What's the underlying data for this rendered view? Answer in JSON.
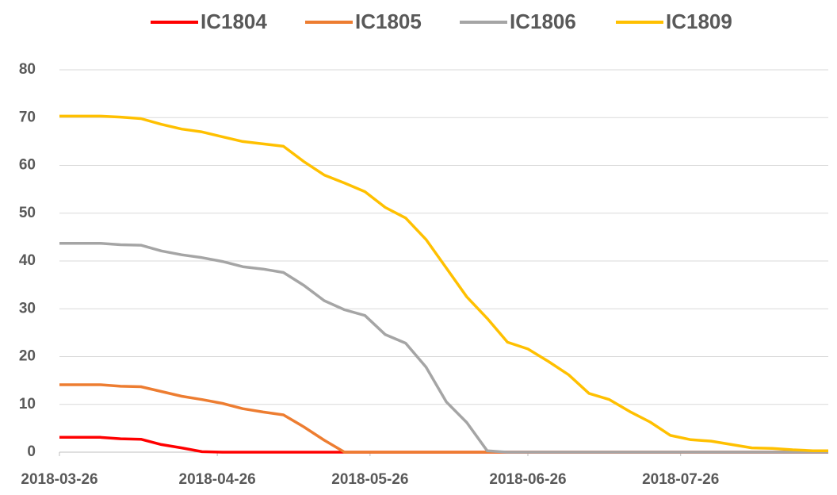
{
  "chart_data": {
    "type": "line",
    "x": [
      "2018-03-26",
      "2018-03-30",
      "2018-04-03",
      "2018-04-07",
      "2018-04-11",
      "2018-04-15",
      "2018-04-19",
      "2018-04-23",
      "2018-04-27",
      "2018-05-01",
      "2018-05-05",
      "2018-05-09",
      "2018-05-13",
      "2018-05-17",
      "2018-05-21",
      "2018-05-25",
      "2018-05-29",
      "2018-06-02",
      "2018-06-06",
      "2018-06-10",
      "2018-06-14",
      "2018-06-18",
      "2018-06-22",
      "2018-06-26",
      "2018-06-30",
      "2018-07-04",
      "2018-07-08",
      "2018-07-12",
      "2018-07-16",
      "2018-07-20",
      "2018-07-24",
      "2018-07-28",
      "2018-08-01",
      "2018-08-05",
      "2018-08-09",
      "2018-08-13",
      "2018-08-17",
      "2018-08-21",
      "2018-08-24"
    ],
    "series": [
      {
        "name": "IC1804",
        "color": "#ff0000",
        "values": [
          3.1,
          3.1,
          3.1,
          2.8,
          2.7,
          1.6,
          0.9,
          0.1,
          0,
          0,
          0,
          0,
          0,
          0,
          0,
          0,
          0,
          0,
          0,
          0,
          0,
          0,
          0,
          0,
          0,
          0,
          0,
          0,
          0,
          0,
          0,
          0,
          0,
          0,
          0,
          0,
          0,
          0,
          0
        ]
      },
      {
        "name": "IC1805",
        "color": "#ed7d31",
        "values": [
          14.1,
          14.1,
          14.1,
          13.8,
          13.7,
          12.7,
          11.7,
          11,
          10.2,
          9.1,
          8.4,
          7.8,
          5.3,
          2.5,
          0,
          0,
          0,
          0,
          0,
          0,
          0,
          0,
          0,
          0,
          0,
          0,
          0,
          0,
          0,
          0,
          0,
          0,
          0,
          0,
          0,
          0,
          0,
          0,
          0
        ]
      },
      {
        "name": "IC1806",
        "color": "#a5a5a5",
        "values": [
          43.7,
          43.7,
          43.7,
          43.4,
          43.3,
          42.1,
          41.3,
          40.7,
          39.9,
          38.8,
          38.3,
          37.6,
          34.9,
          31.7,
          29.8,
          28.6,
          24.6,
          22.8,
          17.8,
          10.5,
          6.2,
          0.3,
          0,
          0,
          0,
          0,
          0,
          0,
          0,
          0,
          0,
          0,
          0,
          0,
          0,
          0,
          0,
          0,
          0
        ]
      },
      {
        "name": "IC1809",
        "color": "#ffc000",
        "values": [
          70.3,
          70.3,
          70.3,
          70.1,
          69.8,
          68.6,
          67.6,
          67,
          66,
          65,
          64.5,
          64,
          60.8,
          58,
          56.3,
          54.5,
          51.2,
          49,
          44.5,
          38.5,
          32.5,
          28,
          23,
          21.6,
          19,
          16.2,
          12.3,
          11,
          8.5,
          6.3,
          3.5,
          2.6,
          2.3,
          1.6,
          0.9,
          0.8,
          0.5,
          0.3,
          0.3
        ]
      }
    ],
    "xlim": [
      "2018-03-26",
      "2018-08-24"
    ],
    "xticks": [
      "2018-03-26",
      "2018-04-26",
      "2018-05-26",
      "2018-06-26",
      "2018-07-26"
    ],
    "ylim": [
      0,
      80
    ],
    "yticks": [
      0,
      10,
      20,
      30,
      40,
      50,
      60,
      70,
      80
    ],
    "grid": true,
    "legend": "top"
  }
}
